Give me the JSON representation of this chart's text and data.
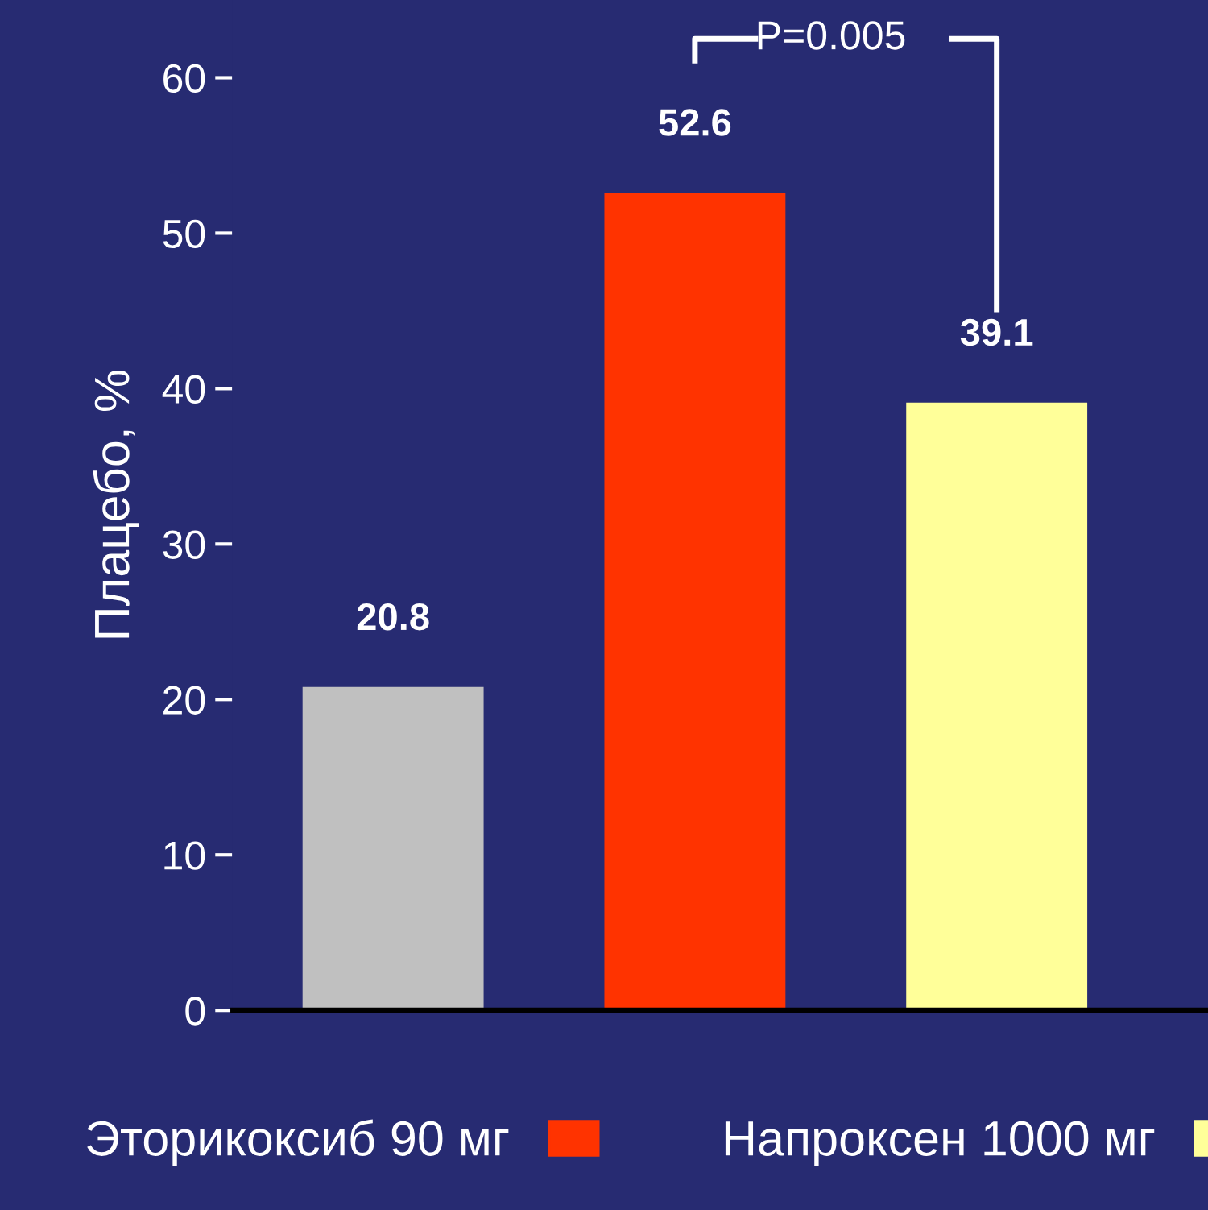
{
  "chart_data": {
    "type": "bar",
    "ylabel": "Плацебо, %",
    "categories": [
      null,
      null,
      null
    ],
    "series": [
      {
        "color": "#c0c0c0",
        "values": [
          20.8,
          null,
          null
        ]
      },
      {
        "name": "Эторикоксиб 90 мг",
        "color": "#ff3300",
        "values": [
          null,
          52.6,
          null
        ]
      },
      {
        "name": "Напроксен 1000 мг",
        "color": "#ffff99",
        "values": [
          null,
          null,
          39.1
        ]
      }
    ],
    "ylim": [
      0,
      65
    ],
    "yticks": [
      0,
      10,
      20,
      30,
      40,
      50,
      60
    ],
    "data_labels": true,
    "legend": "bottom",
    "grid": false,
    "annotations": [
      "P=0.005"
    ]
  }
}
